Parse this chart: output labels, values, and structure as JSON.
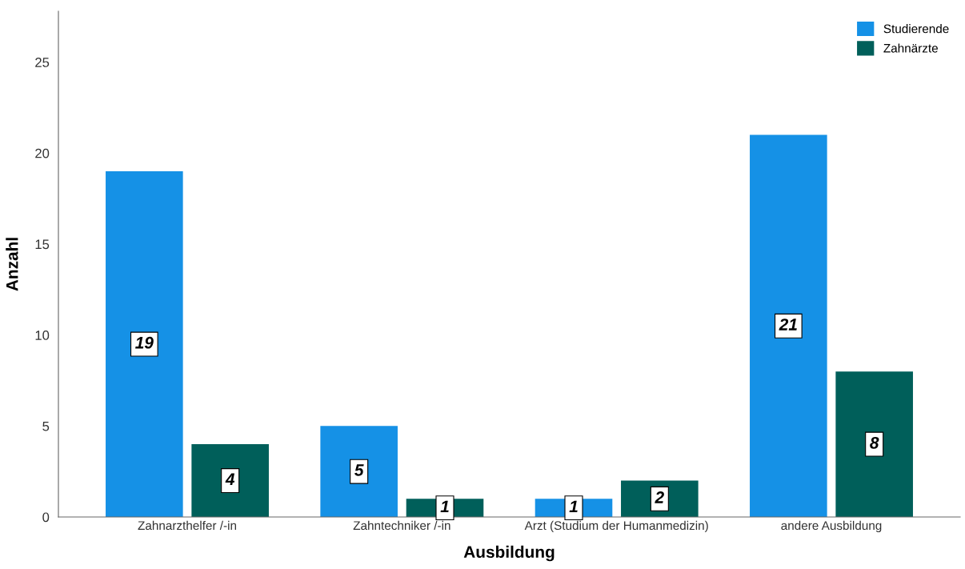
{
  "chart_data": {
    "type": "bar",
    "xlabel": "Ausbildung",
    "ylabel": "Anzahl",
    "categories": [
      "Zahnarzthelfer /-in",
      "Zahntechniker /-in",
      "Arzt (Studium der Humanmedizin)",
      "andere Ausbildung"
    ],
    "series": [
      {
        "name": "Studierende",
        "color": "#1591e6",
        "values": [
          19,
          5,
          1,
          21
        ]
      },
      {
        "name": "Zahnärzte",
        "color": "#005f5a",
        "values": [
          4,
          1,
          2,
          8
        ]
      }
    ],
    "ylim": [
      0,
      27.8
    ],
    "yticks": [
      0,
      5,
      10,
      15,
      20,
      25
    ],
    "grid": false,
    "legend": "top right",
    "data_labels": true
  }
}
